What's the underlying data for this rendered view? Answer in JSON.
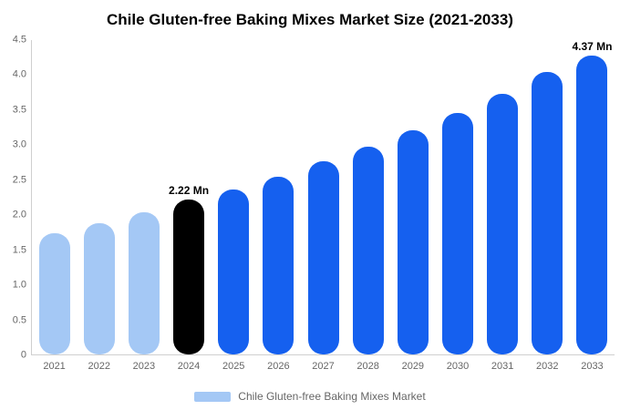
{
  "title": "Chile Gluten-free Baking Mixes Market Size (2021-2033)",
  "legend": {
    "label": "Chile Gluten-free Baking Mixes Market",
    "swatch_color": "#a4c8f5"
  },
  "colors": {
    "historical": "#a4c8f5",
    "highlight": "#000000",
    "forecast": "#1560ef"
  },
  "chart_data": {
    "type": "bar",
    "title": "Chile Gluten-free Baking Mixes Market Size (2021-2033)",
    "categories": [
      "2021",
      "2022",
      "2023",
      "2024",
      "2025",
      "2026",
      "2027",
      "2028",
      "2029",
      "2030",
      "2031",
      "2032",
      "2033"
    ],
    "values": [
      1.74,
      1.88,
      2.03,
      2.22,
      2.36,
      2.55,
      2.76,
      2.97,
      3.21,
      3.46,
      3.73,
      4.04,
      4.37
    ],
    "bar_colors": [
      "#a4c8f5",
      "#a4c8f5",
      "#a4c8f5",
      "#000000",
      "#1560ef",
      "#1560ef",
      "#1560ef",
      "#1560ef",
      "#1560ef",
      "#1560ef",
      "#1560ef",
      "#1560ef",
      "#1560ef"
    ],
    "annotations": [
      {
        "category": "2024",
        "text": "2.22 Mn"
      },
      {
        "category": "2033",
        "text": "4.37 Mn"
      }
    ],
    "xlabel": "",
    "ylabel": "",
    "ylim": [
      0,
      4.5
    ],
    "yticks": [
      0,
      0.5,
      1.0,
      1.5,
      2.0,
      2.5,
      3.0,
      3.5,
      4.0,
      4.5
    ],
    "ytick_labels": [
      "0",
      "0.5",
      "1.0",
      "1.5",
      "2.0",
      "2.5",
      "3.0",
      "3.5",
      "4.0",
      "4.5"
    ],
    "grid": false,
    "legend_position": "bottom",
    "unit": "Mn"
  }
}
